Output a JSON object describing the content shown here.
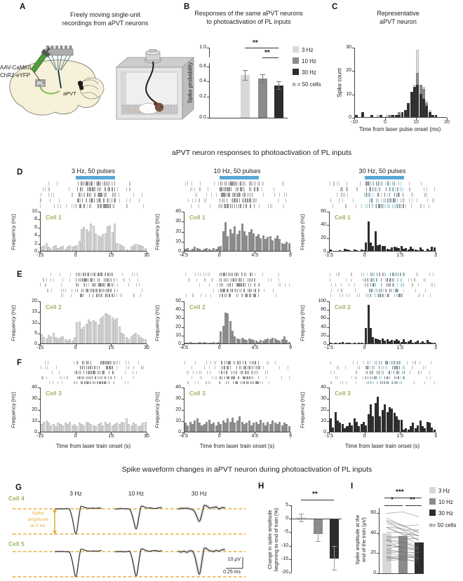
{
  "colors": {
    "hz3": "#d8d8d8",
    "hz10": "#8b8b8b",
    "hz30": "#2d2d2d",
    "laser_blue": "#58a8d7",
    "cell_green": "#9cb45e",
    "orange": "#e9ae3d",
    "raster_gray": "#bdbdbd",
    "raster_dark": "#8f8f8f",
    "raster_blue": "#a9d6e4"
  },
  "panels": {
    "a": "A",
    "b": "B",
    "c": "C",
    "d": "D",
    "e": "E",
    "f": "F",
    "g": "G",
    "h": "H",
    "i": "I"
  },
  "panelA": {
    "title1": "Freely moving single-unit",
    "title2": "recordings from aPVT neurons",
    "inj1": "AAV-CaMKII",
    "inj2": "ChR2-eYFP",
    "pl": "PL",
    "apvt": "aPVT"
  },
  "panelB": {
    "title1": "Responses of the same aPVT neurons",
    "title2": "to photoactivation of PL inputs",
    "ylabel": "Spike probability",
    "yticks": [
      {
        "t": "1.0",
        "f": 1.0
      },
      {
        "t": "0.6",
        "f": 0.73
      },
      {
        "t": "0.4",
        "f": 0.52
      },
      {
        "t": "0.2",
        "f": 0.305
      },
      {
        "t": "0.0",
        "f": 0.0
      }
    ],
    "categories": [
      "3 Hz",
      "10 Hz",
      "30 Hz"
    ],
    "values": [
      0.5,
      0.46,
      0.38
    ],
    "errors": [
      0.055,
      0.05,
      0.045
    ],
    "sig": [
      {
        "label": "**"
      },
      {
        "label": "**"
      }
    ],
    "legend": [
      {
        "label": "3 Hz",
        "color": "hz3"
      },
      {
        "label": "10 Hz",
        "color": "hz10"
      },
      {
        "label": "30 Hz",
        "color": "hz30"
      }
    ],
    "n_label": "n = 50 cells"
  },
  "panelC": {
    "title1": "Representative",
    "title2": "aPVT neuron",
    "ylabel": "Spike count",
    "xlabel": "Time from laser pulse onset (ms)",
    "ymax": 30,
    "yticks": [
      {
        "v": 0,
        "t": "0"
      },
      {
        "v": 10,
        "t": "10"
      },
      {
        "v": 20,
        "t": "20"
      },
      {
        "v": 30,
        "t": "30"
      }
    ],
    "xticks": [
      "-10",
      "0",
      "10",
      "20"
    ],
    "series": [
      {
        "name": "3 Hz",
        "color": "hz3",
        "values": [
          1,
          0,
          1,
          0,
          0,
          1,
          0,
          1,
          1,
          0,
          1,
          0,
          1,
          1,
          2,
          2,
          3,
          5,
          9,
          14,
          29,
          14,
          13,
          7,
          3,
          1,
          0,
          0,
          0,
          0
        ]
      },
      {
        "name": "10 Hz",
        "color": "hz10",
        "values": [
          1,
          0,
          1,
          0,
          0,
          1,
          0,
          0,
          1,
          0,
          0,
          1,
          1,
          1,
          2,
          2,
          3,
          6,
          10,
          13,
          19,
          14,
          12,
          6,
          2,
          1,
          0,
          0,
          0,
          0
        ]
      },
      {
        "name": "30 Hz",
        "color": "hz30",
        "values": [
          1,
          0,
          2,
          0,
          0,
          1,
          0,
          0,
          1,
          0,
          0,
          0,
          1,
          1,
          1,
          2,
          3,
          6,
          11,
          13,
          14,
          10,
          8,
          5,
          2,
          1,
          1,
          0,
          0,
          0
        ]
      }
    ]
  },
  "section1_title": "aPVT neuron responses to photoactivation of PL inputs",
  "section2_title": "Spike waveform changes in aPVT neuron during photoactivation of PL inputs",
  "psth_ylabel": "Frequency (Hz)",
  "psth_xlabel": "Time from laser train onset (s)",
  "psth": [
    {
      "row": "D",
      "col": 0,
      "title": "3 Hz, 50 pulses",
      "cell": "Cell 1",
      "color": "hz3",
      "outline": true,
      "seed": 11,
      "blue": false,
      "ymax": 10,
      "yticks": [
        {
          "v": 0,
          "t": "0"
        },
        {
          "v": 2,
          "t": "2"
        },
        {
          "v": 4,
          "t": "4"
        },
        {
          "v": 6,
          "t": "6"
        },
        {
          "v": 8,
          "t": "8"
        },
        {
          "v": 10,
          "t": "10"
        }
      ],
      "xticks": [
        "-15",
        "0",
        "15",
        "30"
      ],
      "values": [
        1,
        1.5,
        2,
        1,
        0.5,
        1.2,
        1.5,
        0.8,
        1,
        1.2,
        0.6,
        1,
        1.4,
        1,
        1.2,
        1.5,
        2.5,
        5.5,
        6,
        5.5,
        5,
        7,
        6.5,
        4.5,
        4,
        3.5,
        4.2,
        4.5,
        6.2,
        6.5,
        4.8,
        7,
        2,
        1.8,
        1.5,
        1,
        0.4,
        0.2,
        1,
        1.5,
        1.8,
        1.6,
        1.4,
        1.2,
        0.8
      ]
    },
    {
      "row": "D",
      "col": 1,
      "title": "10 Hz, 50 pulses",
      "cell": "Cell 1",
      "color": "hz10",
      "outline": false,
      "seed": 12,
      "blue": false,
      "ymax": 40,
      "yticks": [
        {
          "v": 0,
          "t": "0"
        },
        {
          "v": 10,
          "t": "10"
        },
        {
          "v": 20,
          "t": "20"
        },
        {
          "v": 30,
          "t": "30"
        },
        {
          "v": 40,
          "t": "40"
        }
      ],
      "xticks": [
        "-4.5",
        "0",
        "4.5",
        "9"
      ],
      "values": [
        2,
        3,
        1,
        2,
        4,
        3,
        2,
        1,
        2,
        3,
        2,
        1,
        3,
        2,
        4,
        5,
        20,
        29,
        15,
        22,
        18,
        25,
        17,
        21,
        28,
        20,
        16,
        19,
        22,
        18,
        15,
        17,
        13,
        16,
        12,
        14,
        15,
        11,
        13,
        16,
        12,
        8,
        7,
        9,
        8
      ]
    },
    {
      "row": "D",
      "col": 2,
      "title": "30 Hz, 50 pulses",
      "cell": "Cell 1",
      "color": "hz30",
      "outline": false,
      "seed": 13,
      "blue": true,
      "ymax": 60,
      "yticks": [
        {
          "v": 0,
          "t": "0"
        },
        {
          "v": 20,
          "t": "20"
        },
        {
          "v": 40,
          "t": "40"
        },
        {
          "v": 60,
          "t": "60"
        }
      ],
      "xticks": [
        "-1.5",
        "0",
        "1.5",
        "3"
      ],
      "values": [
        2,
        0,
        0,
        0,
        1,
        0,
        3,
        2,
        1,
        0,
        2,
        1,
        0,
        2,
        1,
        13,
        45,
        13,
        8,
        30,
        9,
        10,
        8,
        8,
        3,
        2,
        5,
        6,
        5,
        4,
        7,
        3,
        4,
        2,
        6,
        3,
        2,
        1,
        5,
        2,
        0,
        3,
        1,
        6,
        5
      ]
    },
    {
      "row": "E",
      "col": 0,
      "cell": "Cell 2",
      "color": "hz3",
      "outline": true,
      "seed": 21,
      "blue": false,
      "ymax": 20,
      "yticks": [
        {
          "v": 0,
          "t": "0"
        },
        {
          "v": 5,
          "t": "5"
        },
        {
          "v": 10,
          "t": "10"
        },
        {
          "v": 15,
          "t": "15"
        },
        {
          "v": 20,
          "t": "20"
        }
      ],
      "xticks": [
        "-15",
        "0",
        "15",
        "30"
      ],
      "values": [
        4.5,
        3,
        2.5,
        4,
        3.5,
        5,
        3,
        2.5,
        3,
        3.5,
        2,
        1.5,
        2,
        1.5,
        3,
        10,
        10.5,
        7,
        8,
        9.5,
        11.5,
        10.5,
        11,
        10.5,
        9,
        12,
        13,
        14.5,
        14,
        13.5,
        12.5,
        11.5,
        12,
        8,
        5,
        4.5,
        3,
        2,
        3.5,
        4.5,
        5,
        4,
        3,
        2.5,
        2
      ]
    },
    {
      "row": "E",
      "col": 1,
      "cell": "Cell 2",
      "color": "hz10",
      "outline": false,
      "seed": 22,
      "blue": false,
      "ymax": 50,
      "yticks": [
        {
          "v": 0,
          "t": "0"
        },
        {
          "v": 10,
          "t": "10"
        },
        {
          "v": 20,
          "t": "20"
        },
        {
          "v": 30,
          "t": "30"
        },
        {
          "v": 40,
          "t": "40"
        },
        {
          "v": 50,
          "t": "50"
        }
      ],
      "xticks": [
        "-4.5",
        "0",
        "4.5",
        "9"
      ],
      "values": [
        1,
        0.5,
        1.5,
        1,
        0.5,
        1,
        2,
        1,
        1.5,
        1,
        0.5,
        1,
        1.5,
        1,
        2,
        14,
        21,
        37,
        36,
        27,
        15,
        8,
        6,
        5,
        7,
        5,
        4,
        6,
        5,
        4,
        3,
        2,
        4,
        3,
        5,
        6,
        5,
        7,
        6,
        4,
        3,
        5,
        8,
        4,
        2
      ]
    },
    {
      "row": "E",
      "col": 2,
      "cell": "Cell 2",
      "color": "hz30",
      "outline": false,
      "seed": 23,
      "blue": true,
      "ymax": 100,
      "yticks": [
        {
          "v": 0,
          "t": "0"
        },
        {
          "v": 20,
          "t": "20"
        },
        {
          "v": 40,
          "t": "40"
        },
        {
          "v": 60,
          "t": "60"
        },
        {
          "v": 80,
          "t": "80"
        },
        {
          "v": 100,
          "t": "100"
        }
      ],
      "xticks": [
        "-1.5",
        "0",
        "1.5",
        "3"
      ],
      "values": [
        1,
        0,
        2,
        0,
        1,
        3,
        0,
        1,
        2,
        0,
        1,
        0,
        2,
        1,
        0,
        36,
        91,
        36,
        15,
        12,
        10,
        8,
        12,
        6,
        10,
        5,
        8,
        7,
        10,
        6,
        4,
        10,
        3,
        5,
        8,
        2,
        3,
        6,
        2,
        5,
        1,
        8,
        3,
        2,
        1
      ]
    },
    {
      "row": "F",
      "col": 0,
      "cell": "Cell 3",
      "color": "hz3",
      "outline": true,
      "seed": 31,
      "blue": false,
      "xlabel": true,
      "ymax": 40,
      "yticks": [
        {
          "v": 0,
          "t": "0"
        },
        {
          "v": 10,
          "t": "10"
        },
        {
          "v": 20,
          "t": "20"
        },
        {
          "v": 30,
          "t": "30"
        },
        {
          "v": 40,
          "t": "40"
        }
      ],
      "xticks": [
        "-15",
        "0",
        "15",
        "30"
      ],
      "values": [
        7,
        9,
        10,
        8,
        6,
        7,
        5,
        8,
        7,
        6,
        8,
        7,
        9,
        6,
        7,
        5,
        8,
        7,
        6,
        9,
        8,
        7,
        6,
        5,
        7,
        8,
        6,
        9,
        7,
        8,
        6,
        7,
        8,
        7,
        9,
        8,
        12,
        7,
        6,
        8,
        7,
        5,
        6,
        8,
        9
      ]
    },
    {
      "row": "F",
      "col": 1,
      "cell": "Cell 3",
      "color": "hz10",
      "outline": false,
      "seed": 32,
      "blue": false,
      "xlabel": true,
      "ymax": 40,
      "yticks": [
        {
          "v": 0,
          "t": "0"
        },
        {
          "v": 10,
          "t": "10"
        },
        {
          "v": 20,
          "t": "20"
        },
        {
          "v": 30,
          "t": "30"
        },
        {
          "v": 40,
          "t": "40"
        }
      ],
      "xticks": [
        "-4.5",
        "0",
        "4.5",
        "9"
      ],
      "values": [
        8,
        6,
        9,
        7,
        10,
        12,
        8,
        6,
        7,
        9,
        11,
        7,
        8,
        6,
        9,
        7,
        10,
        8,
        12,
        9,
        13,
        8,
        10,
        14,
        9,
        7,
        8,
        10,
        6,
        8,
        9,
        7,
        11,
        8,
        6,
        9,
        7,
        10,
        8,
        7,
        9,
        6,
        8,
        7,
        5
      ]
    },
    {
      "row": "F",
      "col": 2,
      "cell": "Cell 3",
      "color": "hz30",
      "outline": false,
      "seed": 33,
      "blue": true,
      "xlabel": true,
      "ymax": 40,
      "yticks": [
        {
          "v": 0,
          "t": "0"
        },
        {
          "v": 10,
          "t": "10"
        },
        {
          "v": 20,
          "t": "20"
        },
        {
          "v": 30,
          "t": "30"
        },
        {
          "v": 40,
          "t": "40"
        }
      ],
      "xticks": [
        "-1.5",
        "0",
        "1.5",
        "3"
      ],
      "values": [
        12,
        4,
        18,
        10,
        8,
        7,
        3,
        5,
        8,
        6,
        12,
        9,
        5,
        7,
        9,
        6,
        16,
        25,
        14,
        26,
        32,
        14,
        20,
        25,
        18,
        22,
        21,
        17,
        14,
        11,
        11,
        2,
        3,
        2,
        5,
        8,
        3,
        6,
        10,
        5,
        3,
        9,
        8,
        4,
        2
      ]
    }
  ],
  "panelG": {
    "headers": [
      "3 Hz",
      "10 Hz",
      "30 Hz"
    ],
    "cells": [
      {
        "label": "Cell 4",
        "amps": [
          1.0,
          0.8,
          0.5
        ]
      },
      {
        "label": "Cell 5",
        "amps": [
          1.0,
          0.97,
          0.9
        ]
      }
    ],
    "annotation": [
      "Spike",
      "amplitude",
      "at 3 Hz"
    ],
    "scale_v": "10 μV",
    "scale_h": "0.25 ms"
  },
  "panelH": {
    "ylabel1": "Change in spike amplitude",
    "ylabel2": "beginning to end of train (%)",
    "ymax": 5,
    "ymin": -20,
    "yticks": [
      {
        "v": 5,
        "t": "5"
      },
      {
        "v": 0,
        "t": "0"
      },
      {
        "v": -5,
        "t": "-5"
      },
      {
        "v": -10,
        "t": "-10"
      },
      {
        "v": -15,
        "t": "-15"
      },
      {
        "v": -20,
        "t": "-20"
      }
    ],
    "categories": [
      "3 Hz",
      "10 Hz",
      "30 Hz"
    ],
    "values": [
      0.5,
      -5.5,
      -14.5
    ],
    "errors": [
      1.4,
      2.8,
      4.5
    ],
    "sig_label": "**"
  },
  "panelI": {
    "ylabel1": "Spike amplitude at the",
    "ylabel2": "end of the train (μV)",
    "ymax": 65,
    "yticks": [
      {
        "v": 0,
        "t": "0"
      },
      {
        "v": 20,
        "t": "20"
      },
      {
        "v": 40,
        "t": "40"
      },
      {
        "v": 60,
        "t": "60"
      }
    ],
    "categories": [
      "3 Hz",
      "10 Hz",
      "30 Hz"
    ],
    "values": [
      40,
      37,
      31
    ],
    "sig_top": "***",
    "sig_left": "*",
    "sig_right": "**",
    "spaghetti_count": 30,
    "legend": [
      {
        "label": "3 Hz",
        "color": "hz3"
      },
      {
        "label": "10 Hz",
        "color": "hz10"
      },
      {
        "label": "30 Hz",
        "color": "hz30"
      }
    ],
    "n_label": "n= 50 cells"
  }
}
